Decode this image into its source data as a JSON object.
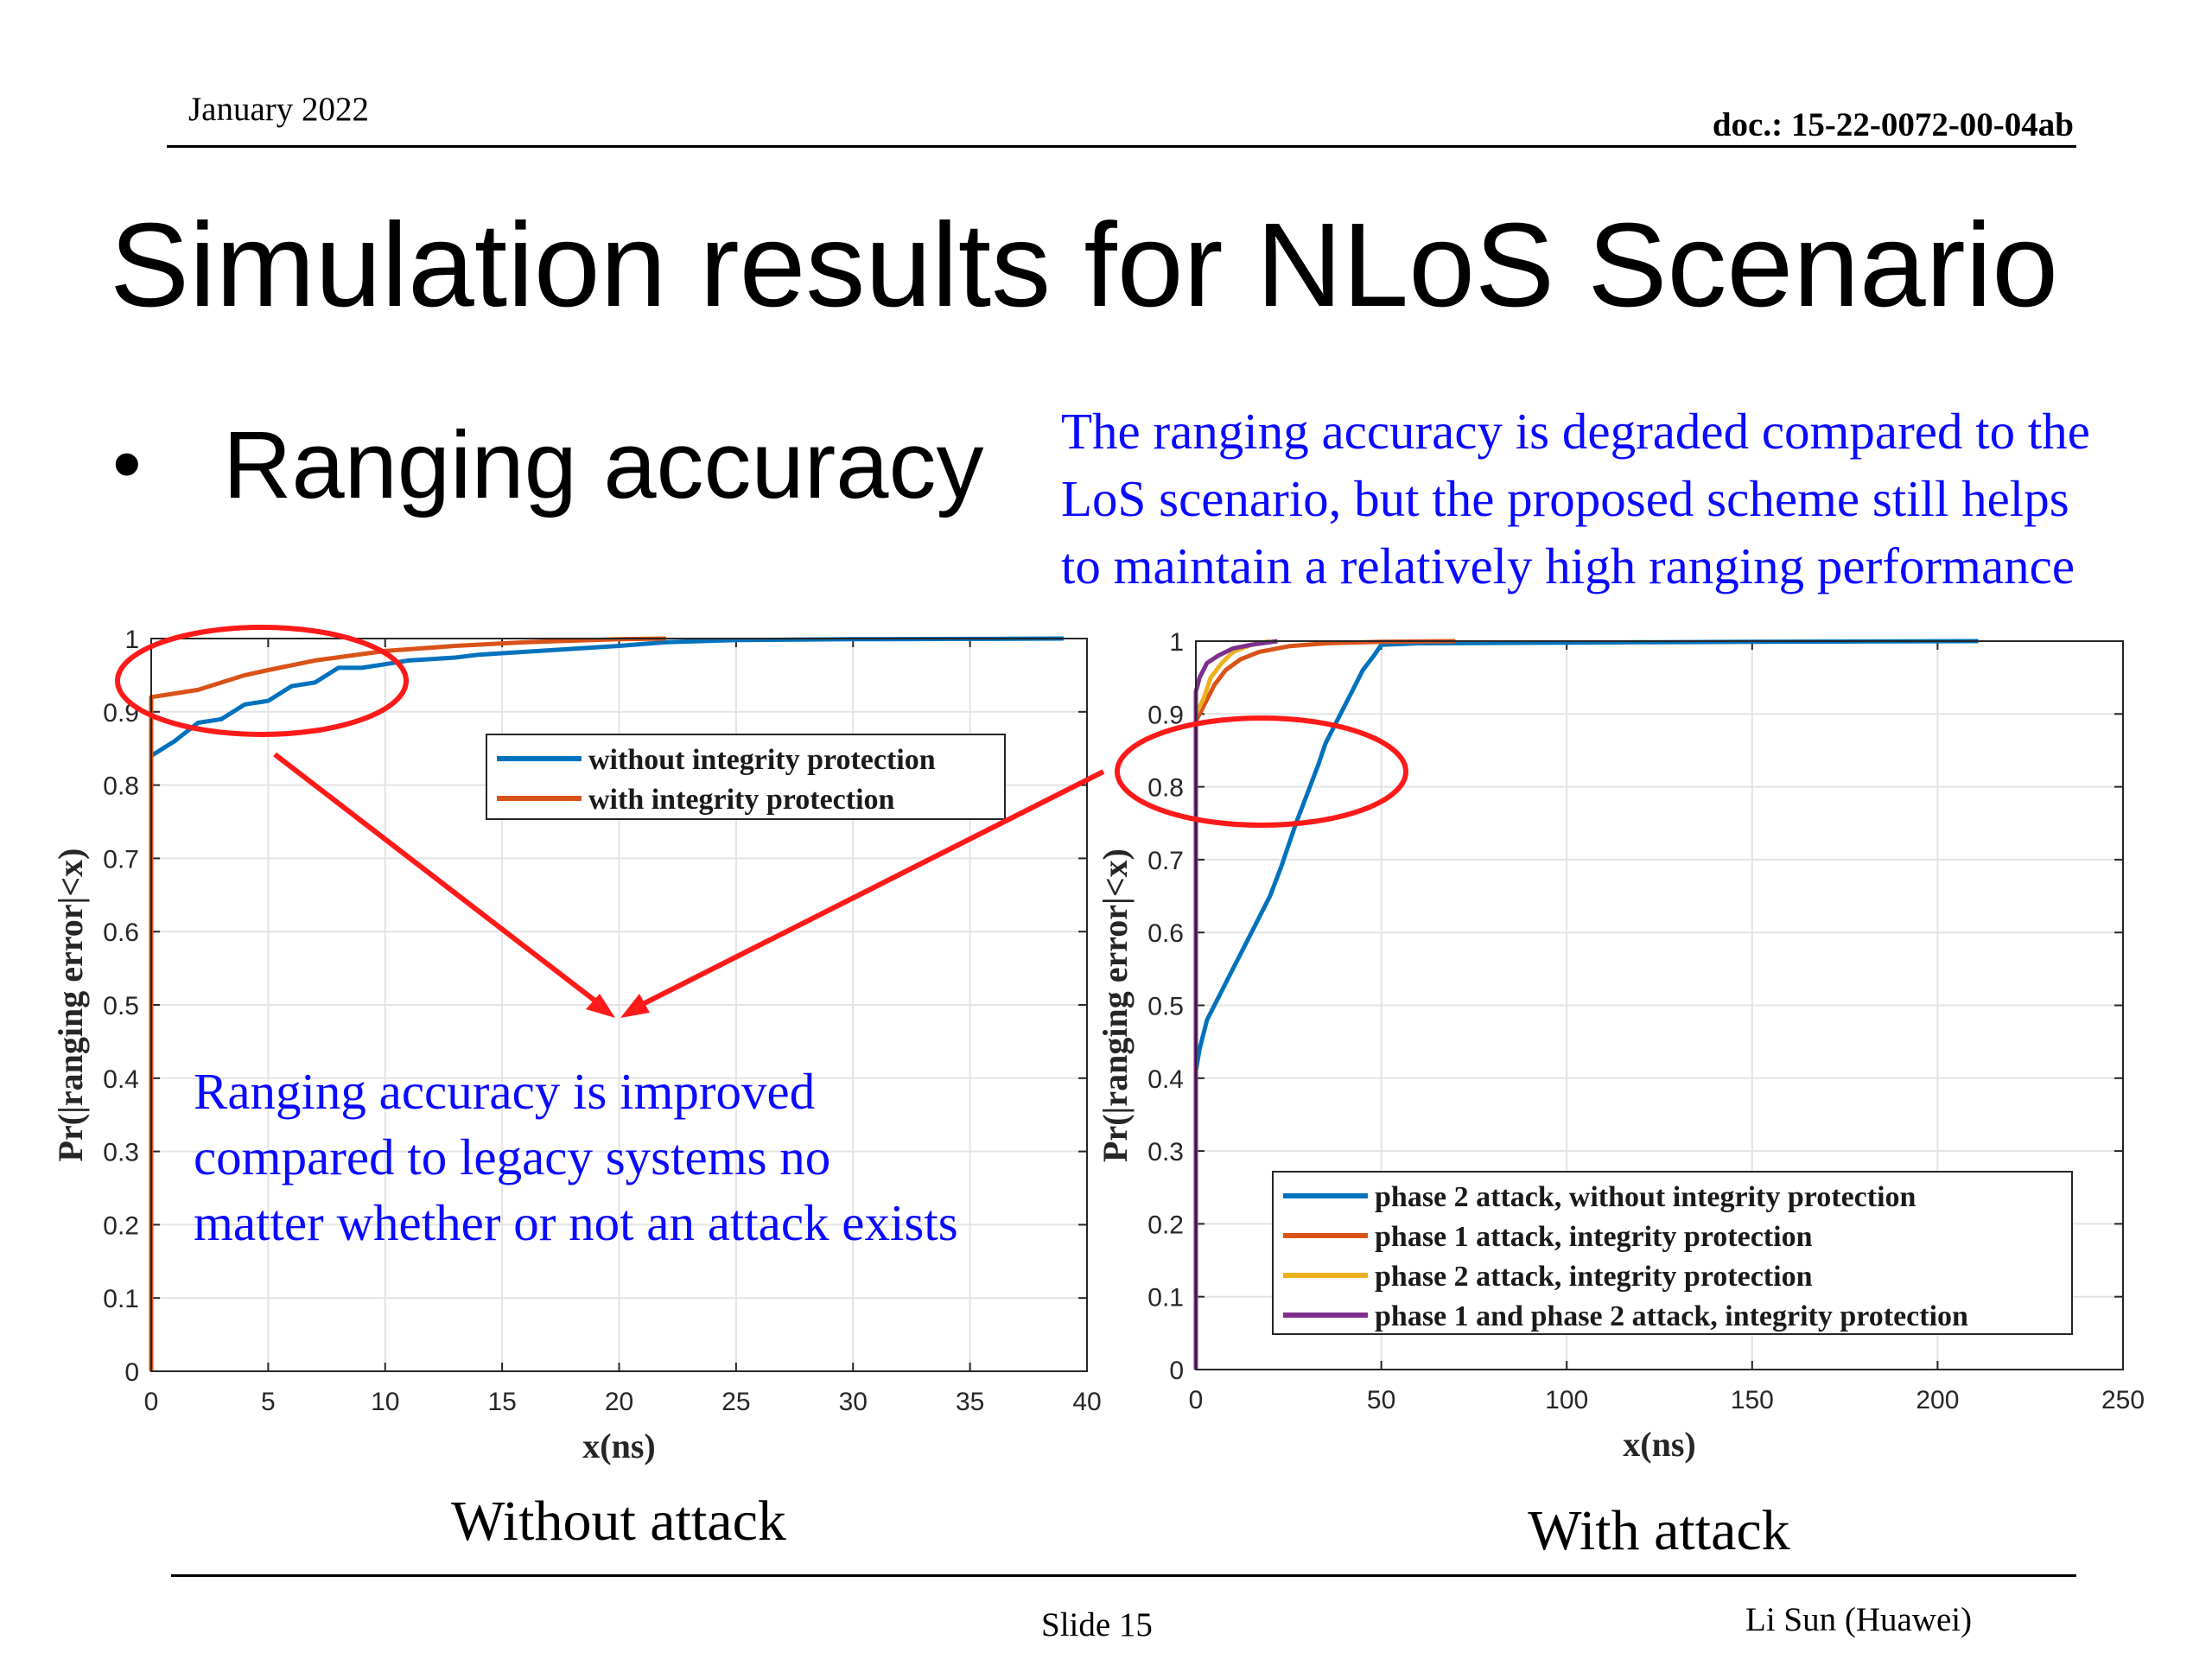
{
  "header": {
    "date": "January 2022",
    "doc": "doc.: 15-22-0072-00-04ab"
  },
  "title": "Simulation results for NLoS Scenario",
  "bullet": {
    "symbol": "•",
    "text": "Ranging accuracy"
  },
  "note_top": [
    "The ranging accuracy is degraded compared to the",
    "LoS scenario, but the proposed scheme still helps",
    "to maintain a relatively high ranging performance"
  ],
  "note_bottom": [
    "Ranging accuracy is improved",
    "compared to legacy systems no",
    "matter whether or not an attack exists"
  ],
  "footer": {
    "slide": "Slide 15",
    "author": "Li Sun (Huawei)"
  },
  "colors": {
    "note": "#0a0aff",
    "annotation": "#ff1a1a",
    "blue": "#0072bd",
    "orange": "#d95319",
    "yellow": "#edb120",
    "purple": "#7e2f8e"
  },
  "chart_data": [
    {
      "type": "line",
      "caption": "Without attack",
      "xlabel": "x(ns)",
      "ylabel": "Pr(|ranging error|<x)",
      "xlim": [
        0,
        40
      ],
      "ylim": [
        0,
        1
      ],
      "xticks": [
        0,
        5,
        10,
        15,
        20,
        25,
        30,
        35,
        40
      ],
      "yticks": [
        0,
        0.1,
        0.2,
        0.3,
        0.4,
        0.5,
        0.6,
        0.7,
        0.8,
        0.9,
        1
      ],
      "grid": true,
      "legend_position": "upper-right",
      "series": [
        {
          "name": "without integrity protection",
          "color": "#0072bd",
          "x": [
            0,
            0,
            1,
            2,
            3,
            4,
            5,
            6,
            7,
            8,
            9,
            10,
            11,
            12,
            13,
            14,
            15,
            17,
            20,
            22,
            25,
            30,
            35,
            39
          ],
          "y": [
            0,
            0.84,
            0.86,
            0.885,
            0.89,
            0.91,
            0.915,
            0.935,
            0.94,
            0.96,
            0.96,
            0.965,
            0.97,
            0.972,
            0.974,
            0.978,
            0.98,
            0.984,
            0.99,
            0.995,
            0.998,
            0.999,
            0.9995,
            1.0
          ]
        },
        {
          "name": "with integrity protection",
          "color": "#d95319",
          "x": [
            0,
            0,
            1,
            2,
            3,
            4,
            5,
            7,
            10,
            13,
            16,
            20,
            22
          ],
          "y": [
            0,
            0.92,
            0.925,
            0.93,
            0.94,
            0.95,
            0.957,
            0.97,
            0.983,
            0.99,
            0.995,
            0.999,
            1.0
          ]
        }
      ]
    },
    {
      "type": "line",
      "caption": "With attack",
      "xlabel": "x(ns)",
      "ylabel": "Pr(|ranging error|<x)",
      "xlim": [
        0,
        250
      ],
      "ylim": [
        0,
        1
      ],
      "xticks": [
        0,
        50,
        100,
        150,
        200,
        250
      ],
      "yticks": [
        0,
        0.1,
        0.2,
        0.3,
        0.4,
        0.5,
        0.6,
        0.7,
        0.8,
        0.9,
        1
      ],
      "grid": true,
      "legend_position": "lower-right",
      "series": [
        {
          "name": "phase 2 attack, without integrity protection",
          "color": "#0072bd",
          "x": [
            0,
            0,
            1,
            3,
            5,
            8,
            10,
            13,
            17,
            20,
            23,
            25,
            27,
            30,
            33,
            35,
            38,
            40,
            43,
            45,
            48,
            50,
            60,
            100,
            150,
            211
          ],
          "y": [
            0,
            0.41,
            0.44,
            0.48,
            0.5,
            0.53,
            0.55,
            0.58,
            0.62,
            0.65,
            0.69,
            0.72,
            0.75,
            0.79,
            0.83,
            0.86,
            0.89,
            0.91,
            0.94,
            0.96,
            0.98,
            0.995,
            0.997,
            0.998,
            0.999,
            1.0
          ]
        },
        {
          "name": "phase 1 attack, integrity protection",
          "color": "#d95319",
          "x": [
            0,
            0,
            2,
            5,
            8,
            12,
            17,
            25,
            35,
            50,
            70
          ],
          "y": [
            0,
            0.89,
            0.91,
            0.94,
            0.96,
            0.975,
            0.985,
            0.993,
            0.997,
            0.999,
            1.0
          ]
        },
        {
          "name": "phase 2 attack, integrity protection",
          "color": "#edb120",
          "x": [
            0,
            0,
            2,
            4,
            7,
            10,
            15,
            20
          ],
          "y": [
            0,
            0.9,
            0.92,
            0.95,
            0.97,
            0.985,
            0.995,
            1.0
          ]
        },
        {
          "name": "phase 1 and phase 2 attack, integrity protection",
          "color": "#7e2f8e",
          "x": [
            0,
            0,
            1,
            3,
            6,
            10,
            15,
            22
          ],
          "y": [
            0,
            0.93,
            0.95,
            0.97,
            0.98,
            0.99,
            0.995,
            1.0
          ]
        }
      ]
    }
  ]
}
